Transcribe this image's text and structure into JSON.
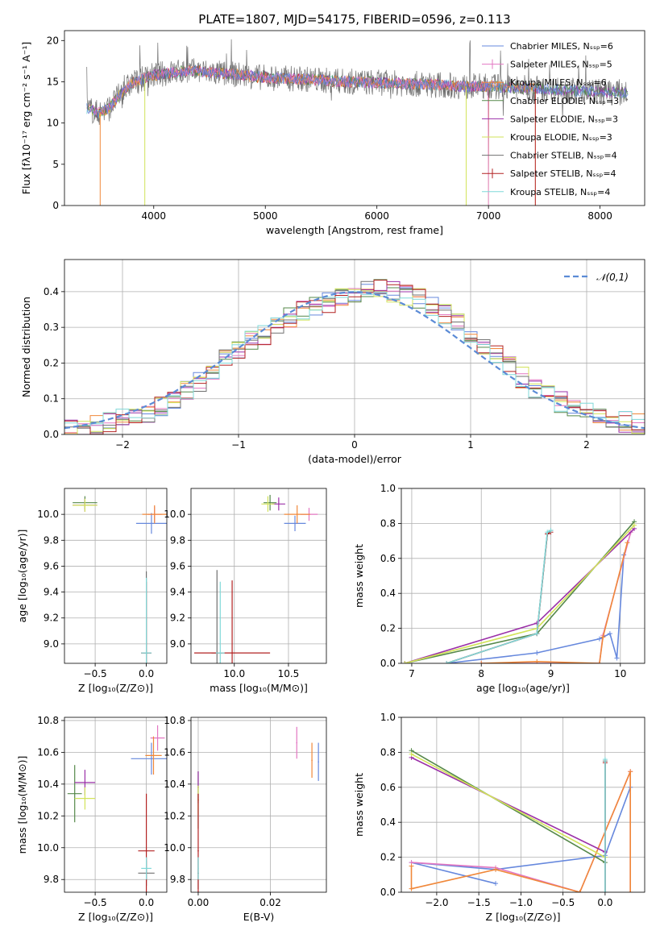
{
  "title": "PLATE=1807, MJD=54175, FIBERID=0596, z=0.113",
  "series_colors": [
    "#6688dd",
    "#e377c2",
    "#f0883a",
    "#55884a",
    "#9b30a8",
    "#d2e35a",
    "#707070",
    "#b22222",
    "#7fd8d8"
  ],
  "chart_data": [
    {
      "type": "line",
      "name": "spectrum",
      "xlabel": "wavelength [Angstrom, rest frame]",
      "ylabel": "Flux [fλ10⁻¹⁷ erg cm⁻² s⁻¹ A⁻¹]",
      "xlim": [
        3200,
        8400
      ],
      "ylim": [
        0,
        21.2
      ],
      "xticks": [
        "4000",
        "5000",
        "6000",
        "7000",
        "8000"
      ],
      "yticks": [
        "0",
        "5",
        "10",
        "15",
        "20"
      ],
      "legend": [
        "Chabrier MILES, Nₛₛₚ=6",
        "Salpeter MILES, Nₛₛₚ=5",
        "Kroupa MILES, Nₛₛₚ=6",
        "Chabrier ELODIE, Nₛₛₚ=3",
        "Salpeter ELODIE, Nₛₛₚ=3",
        "Kroupa ELODIE, Nₛₛₚ=3",
        "Chabrier STELIB, Nₛₛₚ=4",
        "Salpeter STELIB, Nₛₛₚ=4",
        "Kroupa STELIB, Nₛₛₚ=4"
      ],
      "legend_position": "top-right",
      "continuum": {
        "x": [
          3400,
          3500,
          3600,
          3700,
          3800,
          3900,
          4000,
          4200,
          4400,
          4600,
          4800,
          5000,
          5200,
          5400,
          5600,
          5800,
          6000,
          6200,
          6400,
          6600,
          6800,
          7000,
          7200,
          7400,
          7600,
          7800,
          8000,
          8200
        ],
        "y": [
          11.8,
          11.2,
          11.8,
          13.5,
          14.8,
          15.3,
          15.8,
          16.2,
          16.3,
          16.0,
          15.8,
          15.5,
          15.4,
          15.3,
          15.1,
          15.0,
          14.9,
          14.8,
          14.7,
          14.6,
          14.4,
          14.5,
          14.3,
          14.2,
          14.1,
          13.9,
          13.8,
          13.7
        ]
      }
    },
    {
      "type": "line",
      "name": "residuals",
      "xlabel": "(data-model)/error",
      "ylabel": "Normed distribution",
      "xlim": [
        -2.5,
        2.5
      ],
      "ylim": [
        0,
        0.49
      ],
      "xticks": [
        "−2",
        "−1",
        "0",
        "1",
        "2"
      ],
      "yticks": [
        "0.0",
        "0.1",
        "0.2",
        "0.3",
        "0.4"
      ],
      "legend": [
        "𝒩(0,1)"
      ],
      "legend_position": "top-right",
      "hist_base": [
        0.02,
        0.025,
        0.03,
        0.035,
        0.045,
        0.05,
        0.06,
        0.08,
        0.1,
        0.12,
        0.15,
        0.18,
        0.21,
        0.24,
        0.26,
        0.28,
        0.3,
        0.33,
        0.35,
        0.36,
        0.37,
        0.38,
        0.39,
        0.4,
        0.41,
        0.4,
        0.39,
        0.38,
        0.36,
        0.34,
        0.31,
        0.28,
        0.25,
        0.22,
        0.19,
        0.16,
        0.13,
        0.11,
        0.09,
        0.07,
        0.06,
        0.05,
        0.04,
        0.035,
        0.03
      ]
    },
    {
      "type": "scatter",
      "name": "age-vs-Z",
      "xlabel": "Z [log₁₀(Z/Z⊙)]",
      "ylabel": "age  [log₁₀(age/yr)]",
      "xlim": [
        -0.8,
        0.2
      ],
      "ylim": [
        8.85,
        10.2
      ],
      "xticks": [
        "−0.5",
        "0.0"
      ],
      "yticks": [
        "9.0",
        "9.2",
        "9.4",
        "9.6",
        "9.8",
        "10.0"
      ],
      "points": [
        {
          "x": 0.05,
          "y": 9.93,
          "xe": 0.15,
          "ye": 0.08
        },
        {
          "x": 0.08,
          "y": 10.0,
          "xe": 0.07,
          "ye": 0.06
        },
        {
          "x": 0.08,
          "y": 10.0,
          "xe": 0.12,
          "ye": 0.07
        },
        {
          "x": -0.6,
          "y": 10.09,
          "xe": 0.12,
          "ye": 0.05
        },
        {
          "x": -0.6,
          "y": 10.07,
          "xe": 0.12,
          "ye": 0.05
        },
        {
          "x": -0.6,
          "y": 10.07,
          "xe": 0.12,
          "ye": 0.05
        },
        {
          "x": 0.0,
          "y": 8.93,
          "xe": 0.05,
          "ye": 0.63
        },
        {
          "x": 0.0,
          "y": 8.93,
          "xe": 0.05,
          "ye": 0.55
        },
        {
          "x": 0.0,
          "y": 8.93,
          "xe": 0.05,
          "ye": 0.58
        }
      ]
    },
    {
      "type": "scatter",
      "name": "age-vs-mass",
      "xlabel": "mass [log₁₀(M/M⊙)]",
      "ylabel": "",
      "xlim": [
        9.6,
        10.85
      ],
      "ylim": [
        8.85,
        10.2
      ],
      "xticks": [
        "10.0",
        "10.5"
      ],
      "yticks": [
        "9.0",
        "9.2",
        "9.4",
        "9.6",
        "9.8",
        "10.0"
      ],
      "points": [
        {
          "x": 10.56,
          "y": 9.93,
          "xe": 0.1,
          "ye": 0.06
        },
        {
          "x": 10.69,
          "y": 10.0,
          "xe": 0.08,
          "ye": 0.05
        },
        {
          "x": 10.58,
          "y": 10.0,
          "xe": 0.12,
          "ye": 0.07
        },
        {
          "x": 10.33,
          "y": 10.09,
          "xe": 0.06,
          "ye": 0.06
        },
        {
          "x": 10.41,
          "y": 10.08,
          "xe": 0.06,
          "ye": 0.05
        },
        {
          "x": 10.31,
          "y": 10.08,
          "xe": 0.06,
          "ye": 0.06
        },
        {
          "x": 9.84,
          "y": 8.93,
          "xe": 0.05,
          "ye": 0.64
        },
        {
          "x": 9.98,
          "y": 8.93,
          "xe": 0.35,
          "ye": 0.56
        },
        {
          "x": 9.87,
          "y": 8.93,
          "xe": 0.04,
          "ye": 0.55
        }
      ]
    },
    {
      "type": "line",
      "name": "mass-weight-vs-age",
      "xlabel": "age  [log₁₀(age/yr)]",
      "ylabel": "mass weight",
      "xlim": [
        6.85,
        10.35
      ],
      "ylim": [
        0,
        1
      ],
      "xticks": [
        "7",
        "8",
        "9",
        "10"
      ],
      "yticks": [
        "0.0",
        "0.2",
        "0.4",
        "0.6",
        "0.8",
        "1.0"
      ],
      "series": [
        {
          "x": [
            7.5,
            8.8,
            9.7,
            9.85,
            9.95,
            10.05
          ],
          "y": [
            0.0,
            0.06,
            0.14,
            0.17,
            0.03,
            0.62
          ]
        },
        {
          "x": [
            8.0,
            8.8,
            9.7,
            9.75,
            10.15
          ],
          "y": [
            0.0,
            0.0,
            0.0,
            0.16,
            0.75
          ]
        },
        {
          "x": [
            8.0,
            8.8,
            9.7,
            9.75,
            10.1
          ],
          "y": [
            0.0,
            0.01,
            0.0,
            0.15,
            0.69
          ]
        },
        {
          "x": [
            6.9,
            8.8,
            10.2
          ],
          "y": [
            0.0,
            0.17,
            0.81
          ]
        },
        {
          "x": [
            6.9,
            8.8,
            10.2
          ],
          "y": [
            0.0,
            0.23,
            0.77
          ]
        },
        {
          "x": [
            6.9,
            8.8,
            10.2
          ],
          "y": [
            0.0,
            0.2,
            0.79
          ]
        },
        {
          "x": [
            7.5,
            8.8,
            8.95,
            9.0
          ],
          "y": [
            0.0,
            0.17,
            0.74,
            0.76
          ]
        },
        {
          "x": [
            7.5,
            8.8,
            8.95,
            9.0
          ],
          "y": [
            0.0,
            0.17,
            0.74,
            0.75
          ]
        },
        {
          "x": [
            7.5,
            8.8,
            8.95,
            9.0
          ],
          "y": [
            0.0,
            0.17,
            0.75,
            0.76
          ]
        }
      ]
    },
    {
      "type": "scatter",
      "name": "mass-vs-Z",
      "xlabel": "Z [log₁₀(Z/Z⊙)]",
      "ylabel": "mass [log₁₀(M/M⊙)]",
      "xlim": [
        -0.8,
        0.2
      ],
      "ylim": [
        9.72,
        10.82
      ],
      "xticks": [
        "−0.5",
        "0.0"
      ],
      "yticks": [
        "9.8",
        "10.0",
        "10.2",
        "10.4",
        "10.6",
        "10.8"
      ],
      "points": [
        {
          "x": 0.05,
          "y": 10.56,
          "xe": 0.2,
          "ye": 0.1
        },
        {
          "x": 0.11,
          "y": 10.69,
          "xe": 0.07,
          "ye": 0.08
        },
        {
          "x": 0.07,
          "y": 10.58,
          "xe": 0.08,
          "ye": 0.12
        },
        {
          "x": -0.7,
          "y": 10.34,
          "xe": 0.07,
          "ye": 0.18
        },
        {
          "x": -0.6,
          "y": 10.41,
          "xe": 0.1,
          "ye": 0.08
        },
        {
          "x": -0.6,
          "y": 10.31,
          "xe": 0.1,
          "ye": 0.07
        },
        {
          "x": 0.0,
          "y": 9.84,
          "xe": 0.08,
          "ye": 0.08
        },
        {
          "x": 0.0,
          "y": 9.98,
          "xe": 0.08,
          "ye": 0.36
        },
        {
          "x": 0.0,
          "y": 9.87,
          "xe": 0.05,
          "ye": 0.07
        }
      ]
    },
    {
      "type": "scatter",
      "name": "mass-vs-EBV",
      "xlabel": "E(B-V)",
      "ylabel": "",
      "xlim": [
        -0.002,
        0.0355
      ],
      "ylim": [
        9.72,
        10.82
      ],
      "xticks": [
        "0.00",
        "0.02"
      ],
      "yticks": [
        "9.8",
        "10.0",
        "10.2",
        "10.4",
        "10.6",
        "10.8"
      ],
      "points": [
        {
          "x": 0.0333,
          "y": 10.54,
          "xe": 0,
          "ye": 0.12
        },
        {
          "x": 0.0273,
          "y": 10.66,
          "xe": 0,
          "ye": 0.1
        },
        {
          "x": 0.0315,
          "y": 10.55,
          "xe": 0,
          "ye": 0.11
        },
        {
          "x": 0.0,
          "y": 10.3,
          "xe": 0,
          "ye": 0.18
        },
        {
          "x": 0.0,
          "y": 10.38,
          "xe": 0,
          "ye": 0.1
        },
        {
          "x": 0.0,
          "y": 10.3,
          "xe": 0,
          "ye": 0.09
        },
        {
          "x": 0.0,
          "y": 9.84,
          "xe": 0,
          "ye": 0.1
        },
        {
          "x": 0.0,
          "y": 9.98,
          "xe": 0,
          "ye": 0.36
        },
        {
          "x": 0.0,
          "y": 9.87,
          "xe": 0,
          "ye": 0.07
        }
      ]
    },
    {
      "type": "line",
      "name": "mass-weight-vs-Z",
      "xlabel": "Z [log₁₀(Z/Z⊙)]",
      "ylabel": "mass weight",
      "xlim": [
        -2.42,
        0.47
      ],
      "ylim": [
        0,
        1
      ],
      "xticks": [
        "−2.0",
        "−1.5",
        "−1.0",
        "−0.5",
        "0.0"
      ],
      "yticks": [
        "0.0",
        "0.2",
        "0.4",
        "0.6",
        "0.8",
        "1.0"
      ],
      "series": [
        {
          "x": [
            -1.3,
            -2.3,
            -1.3,
            0.0,
            0.3
          ],
          "y": [
            0.05,
            0.17,
            0.13,
            0.21,
            0.6
          ]
        },
        {
          "x": [
            -2.3,
            -1.3,
            -0.3,
            0.3,
            0.3
          ],
          "y": [
            0.17,
            0.14,
            0.0,
            0.69,
            0.0
          ]
        },
        {
          "x": [
            -2.3,
            -2.3,
            -1.3,
            -0.3,
            0.3,
            0.3
          ],
          "y": [
            0.15,
            0.02,
            0.13,
            0.0,
            0.69,
            0.0
          ]
        },
        {
          "x": [
            -2.3,
            0.0
          ],
          "y": [
            0.81,
            0.17
          ]
        },
        {
          "x": [
            -2.3,
            0.0
          ],
          "y": [
            0.77,
            0.23
          ]
        },
        {
          "x": [
            -2.3,
            0.0
          ],
          "y": [
            0.79,
            0.2
          ]
        },
        {
          "x": [
            0.0,
            0.0
          ],
          "y": [
            0.0,
            0.75
          ]
        },
        {
          "x": [
            0.0,
            0.0
          ],
          "y": [
            0.0,
            0.74
          ]
        },
        {
          "x": [
            0.0,
            0.0
          ],
          "y": [
            0.0,
            0.76
          ]
        }
      ]
    }
  ]
}
